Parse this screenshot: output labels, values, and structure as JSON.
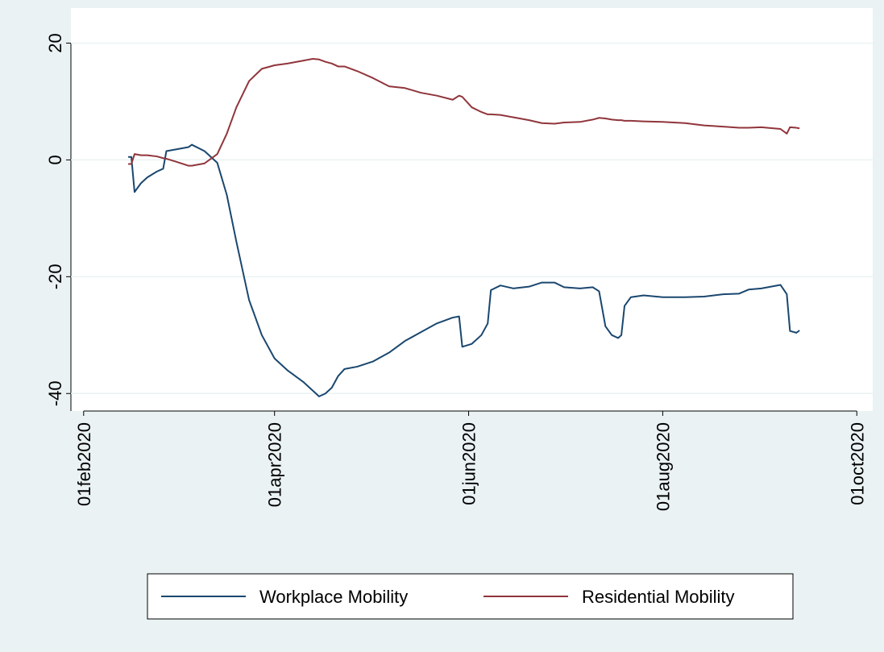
{
  "chart_data": {
    "type": "line",
    "x": [
      "2020-02-15",
      "2020-02-16",
      "2020-02-17",
      "2020-02-19",
      "2020-02-21",
      "2020-02-24",
      "2020-02-26",
      "2020-02-27",
      "2020-03-01",
      "2020-03-05",
      "2020-03-06",
      "2020-03-10",
      "2020-03-14",
      "2020-03-17",
      "2020-03-20",
      "2020-03-24",
      "2020-03-28",
      "2020-04-01",
      "2020-04-05",
      "2020-04-10",
      "2020-04-13",
      "2020-04-15",
      "2020-04-17",
      "2020-04-19",
      "2020-04-21",
      "2020-04-23",
      "2020-04-27",
      "2020-05-02",
      "2020-05-07",
      "2020-05-12",
      "2020-05-17",
      "2020-05-22",
      "2020-05-27",
      "2020-05-29",
      "2020-05-30",
      "2020-06-02",
      "2020-06-05",
      "2020-06-07",
      "2020-06-08",
      "2020-06-11",
      "2020-06-15",
      "2020-06-20",
      "2020-06-24",
      "2020-06-28",
      "2020-07-01",
      "2020-07-06",
      "2020-07-10",
      "2020-07-12",
      "2020-07-14",
      "2020-07-16",
      "2020-07-18",
      "2020-07-19",
      "2020-07-20",
      "2020-07-22",
      "2020-07-26",
      "2020-08-01",
      "2020-08-08",
      "2020-08-14",
      "2020-08-20",
      "2020-08-25",
      "2020-08-28",
      "2020-09-01",
      "2020-09-07",
      "2020-09-09",
      "2020-09-10",
      "2020-09-12",
      "2020-09-13"
    ],
    "series": [
      {
        "name": "Workplace Mobility",
        "color": "#1a476f",
        "values": [
          0.5,
          0.5,
          -5.5,
          -4,
          -3,
          -2,
          -1.5,
          1.5,
          1.8,
          2.2,
          2.6,
          1.5,
          -0.5,
          -6,
          -14,
          -24,
          -30,
          -34,
          -36,
          -38,
          -39.5,
          -40.5,
          -40,
          -39,
          -37,
          -35.8,
          -35.4,
          -34.5,
          -33,
          -31,
          -29.5,
          -28,
          -27,
          -26.8,
          -32,
          -31.5,
          -30,
          -28,
          -22.3,
          -21.5,
          -22,
          -21.7,
          -21,
          -21,
          -21.8,
          -22,
          -21.8,
          -22.5,
          -28.5,
          -30,
          -30.5,
          -30,
          -25,
          -23.5,
          -23.2,
          -23.5,
          -23.5,
          -23.4,
          -23,
          -22.9,
          -22.2,
          -22,
          -21.4,
          -23,
          -29.3,
          -29.6,
          -29.2
        ]
      },
      {
        "name": "Residential Mobility",
        "color": "#90353b",
        "values": [
          -0.7,
          -0.7,
          1,
          0.8,
          0.8,
          0.6,
          0.3,
          0.2,
          -0.3,
          -1,
          -1,
          -0.6,
          1,
          4.5,
          9,
          13.5,
          15.6,
          16.2,
          16.5,
          17,
          17.3,
          17.2,
          16.8,
          16.5,
          16,
          16,
          15.2,
          14,
          12.6,
          12.3,
          11.5,
          11,
          10.3,
          11,
          10.8,
          9,
          8.2,
          7.8,
          7.8,
          7.7,
          7.3,
          6.8,
          6.3,
          6.2,
          6.4,
          6.5,
          6.9,
          7.2,
          7.1,
          6.9,
          6.8,
          6.8,
          6.7,
          6.7,
          6.6,
          6.5,
          6.3,
          5.9,
          5.7,
          5.5,
          5.5,
          5.6,
          5.3,
          4.5,
          5.6,
          5.5,
          5.4
        ]
      }
    ],
    "xlim": [
      "2020-01-28",
      "2020-10-06"
    ],
    "xticks": [
      {
        "value": "2020-02-01",
        "label": "01feb2020"
      },
      {
        "value": "2020-04-01",
        "label": "01apr2020"
      },
      {
        "value": "2020-06-01",
        "label": "01jun2020"
      },
      {
        "value": "2020-08-01",
        "label": "01aug2020"
      },
      {
        "value": "2020-10-01",
        "label": "01oct2020"
      }
    ],
    "ylim": [
      -43,
      26
    ],
    "yticks": [
      -40,
      -20,
      0,
      20
    ],
    "grid": true
  }
}
